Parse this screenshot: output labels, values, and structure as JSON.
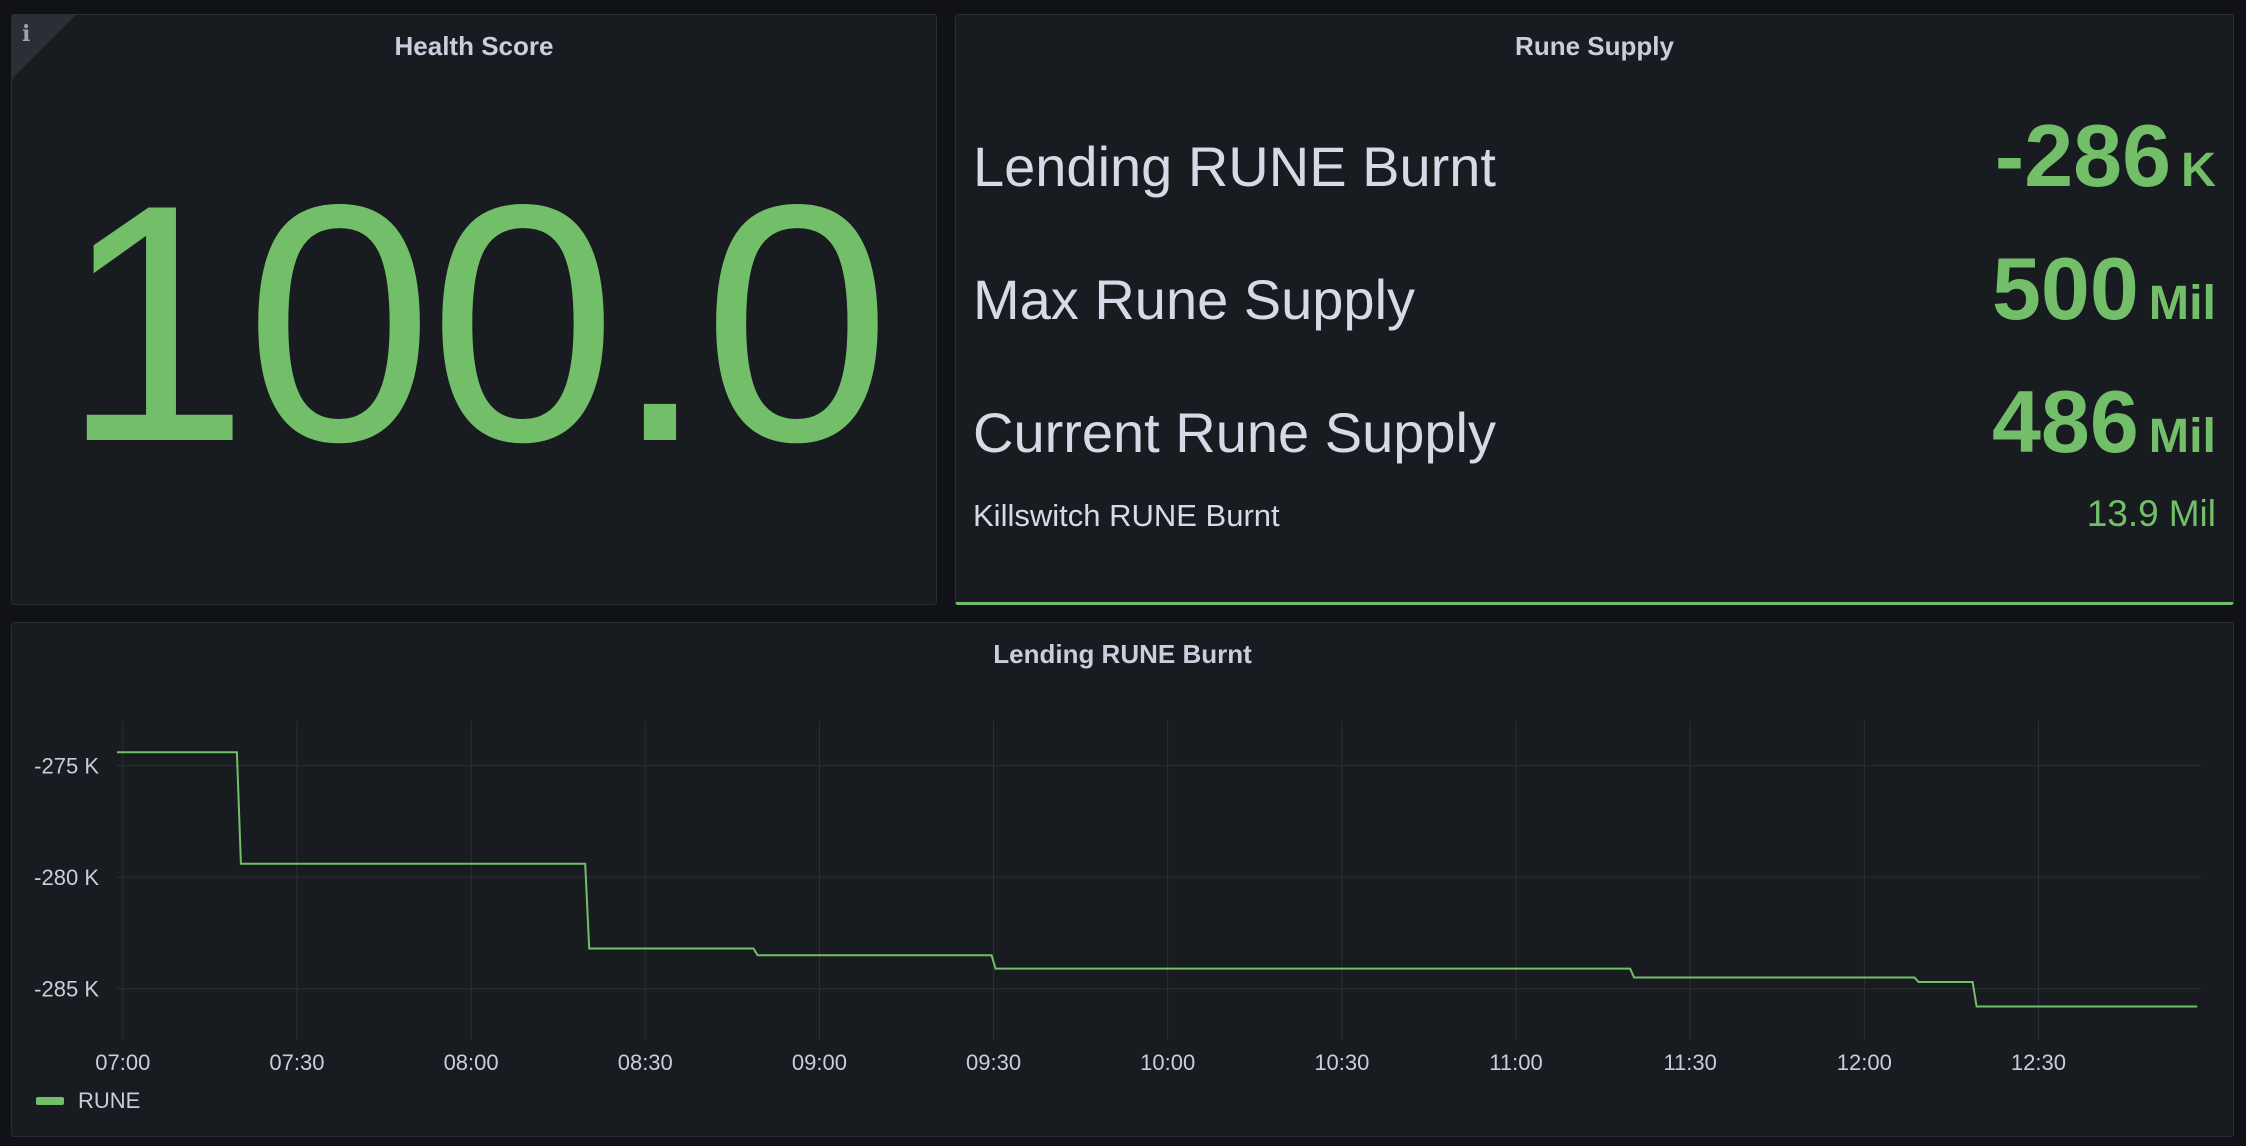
{
  "health_panel": {
    "title": "Health Score",
    "value": "100.0",
    "info_icon": "info-icon"
  },
  "supply_panel": {
    "title": "Rune Supply",
    "rows": [
      {
        "label": "Lending RUNE Burnt",
        "value": "-286",
        "unit": "K"
      },
      {
        "label": "Max Rune Supply",
        "value": "500",
        "unit": "Mil"
      },
      {
        "label": "Current Rune Supply",
        "value": "486",
        "unit": "Mil"
      },
      {
        "label": "Killswitch RUNE Burnt",
        "value": "13.9",
        "unit": "Mil"
      }
    ]
  },
  "colors": {
    "accent": "#73bf69",
    "background": "#111217",
    "panel": "#181b1f",
    "text": "#ccccdc"
  },
  "chart_data": {
    "type": "line",
    "title": "Lending RUNE Burnt",
    "interpolation": "step-after",
    "xlabel": "",
    "ylabel": "",
    "xlim": [
      "06:59",
      "12:58"
    ],
    "ylim": [
      -287.3,
      -273.0
    ],
    "x_ticks": [
      "07:00",
      "07:30",
      "08:00",
      "08:30",
      "09:00",
      "09:30",
      "10:00",
      "10:30",
      "11:00",
      "11:30",
      "12:00",
      "12:30"
    ],
    "y_ticks": [
      {
        "value": -275,
        "label": "-275 K"
      },
      {
        "value": -280,
        "label": "-280 K"
      },
      {
        "value": -285,
        "label": "-285 K"
      }
    ],
    "grid": true,
    "legend": "bottom-left",
    "series": [
      {
        "name": "RUNE",
        "color": "#73bf69",
        "x": [
          "06:59",
          "07:20",
          "08:20",
          "08:49",
          "09:30",
          "11:20",
          "12:09",
          "12:19",
          "12:57"
        ],
        "y": [
          -274.4,
          -279.4,
          -283.2,
          -283.5,
          -284.1,
          -284.5,
          -284.7,
          -285.8,
          -285.8
        ]
      }
    ]
  }
}
